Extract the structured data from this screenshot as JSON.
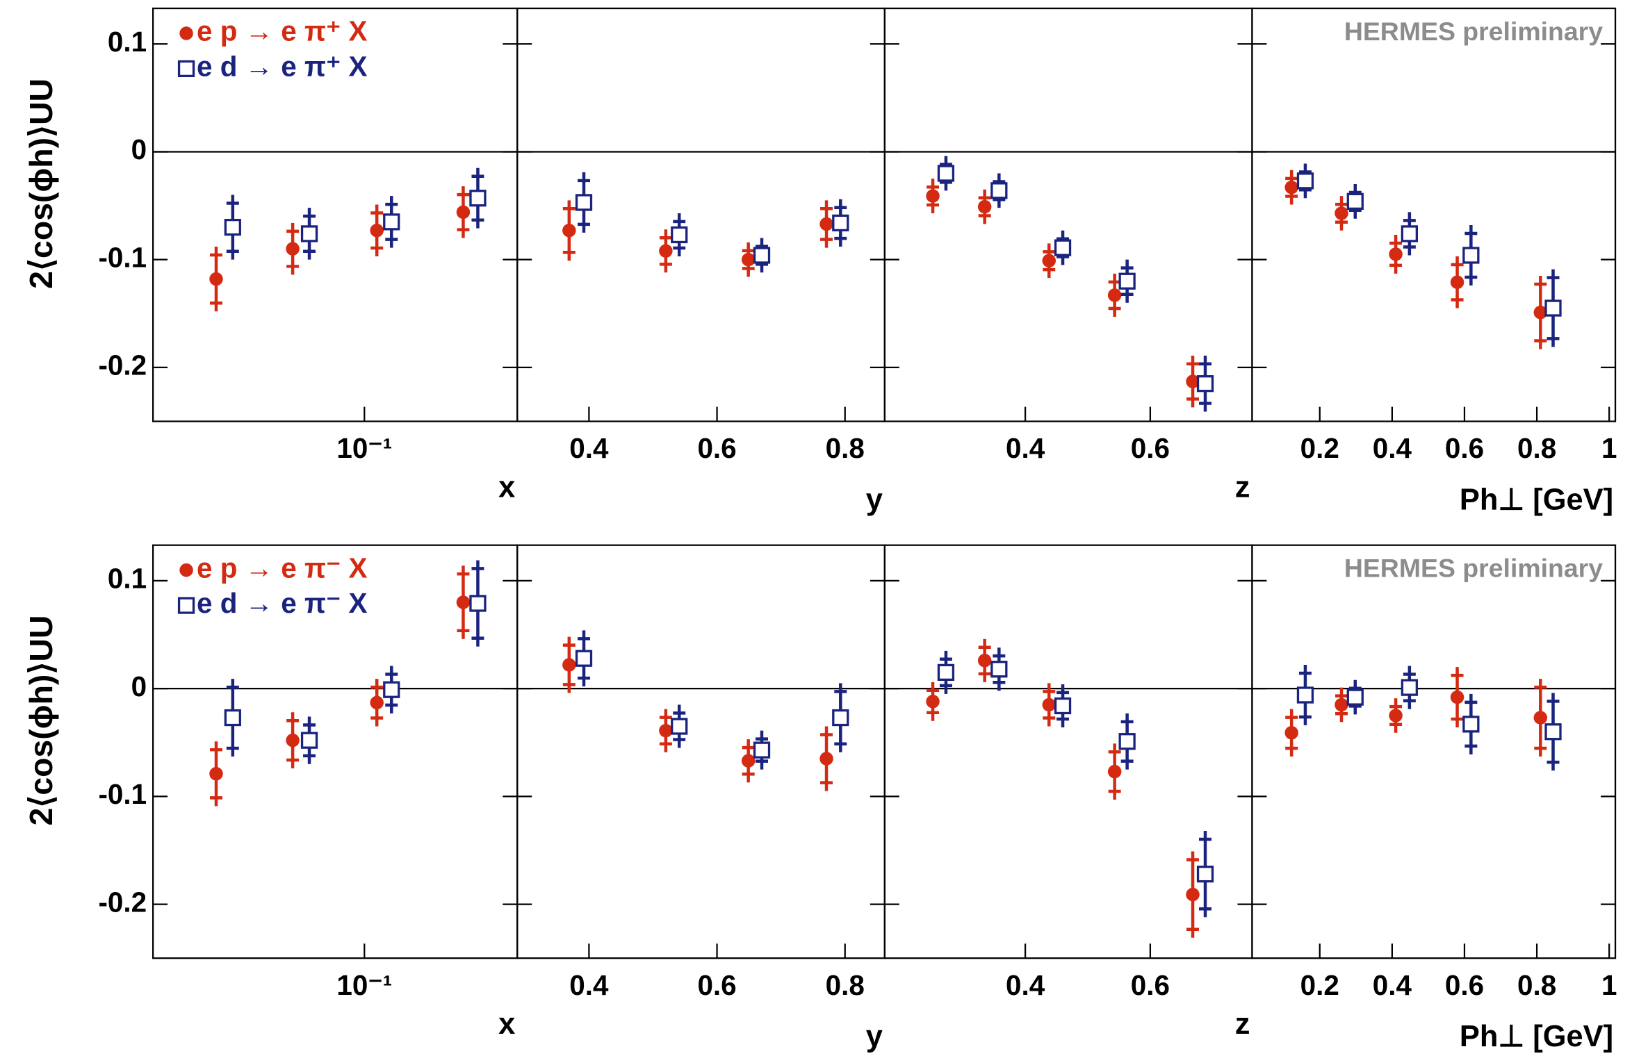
{
  "chart_data": [
    {
      "type": "scatter",
      "ylabel": "2⟨cos(ϕh)⟩UU",
      "xlabel": "x",
      "xscale": "log",
      "xlim": [
        0.0108,
        0.5
      ],
      "xticks": [
        {
          "value": 0.1,
          "label": "10⁻¹"
        }
      ],
      "ylim": [
        -0.25,
        0.133
      ],
      "yticks": [
        -0.2,
        -0.1,
        0,
        0.1
      ],
      "series": [
        {
          "name": "e p → e π⁺ X",
          "color": "#d42a12",
          "marker": "circle",
          "x": [
            0.021,
            0.047,
            0.114,
            0.283
          ],
          "values": [
            -0.118,
            -0.09,
            -0.073,
            -0.056
          ],
          "errors": [
            0.03,
            0.024,
            0.024,
            0.024
          ]
        },
        {
          "name": "e d → e π⁺ X",
          "color": "#1a237e",
          "marker": "square",
          "x": [
            0.025,
            0.056,
            0.133,
            0.33
          ],
          "values": [
            -0.07,
            -0.076,
            -0.065,
            -0.043
          ],
          "errors": [
            0.03,
            0.024,
            0.024,
            0.028
          ]
        }
      ]
    },
    {
      "type": "scatter",
      "xlabel": "y",
      "xlim": [
        0.288,
        0.862
      ],
      "xticks": [
        0.4,
        0.6,
        0.8
      ],
      "ylim": [
        -0.25,
        0.133
      ],
      "yticks": [
        -0.2,
        -0.1,
        0,
        0.1
      ],
      "series": [
        {
          "color": "#d42a12",
          "marker": "circle",
          "x": [
            0.369,
            0.52,
            0.649,
            0.771
          ],
          "values": [
            -0.073,
            -0.092,
            -0.1,
            -0.067
          ],
          "errors": [
            0.028,
            0.02,
            0.016,
            0.022
          ]
        },
        {
          "color": "#1a237e",
          "marker": "square",
          "x": [
            0.392,
            0.541,
            0.67,
            0.793
          ],
          "values": [
            -0.047,
            -0.077,
            -0.096,
            -0.066
          ],
          "errors": [
            0.028,
            0.02,
            0.016,
            0.022
          ]
        }
      ]
    },
    {
      "type": "scatter",
      "xlabel": "z",
      "xlim": [
        0.175,
        0.763
      ],
      "xticks": [
        0.4,
        0.6
      ],
      "ylim": [
        -0.25,
        0.133
      ],
      "yticks": [
        -0.2,
        -0.1,
        0,
        0.1
      ],
      "series": [
        {
          "color": "#d42a12",
          "marker": "circle",
          "x": [
            0.252,
            0.335,
            0.438,
            0.543,
            0.668
          ],
          "values": [
            -0.041,
            -0.051,
            -0.101,
            -0.133,
            -0.213
          ],
          "errors": [
            0.016,
            0.016,
            0.016,
            0.02,
            0.024
          ]
        },
        {
          "color": "#1a237e",
          "marker": "square",
          "x": [
            0.273,
            0.358,
            0.46,
            0.563,
            0.688
          ],
          "values": [
            -0.02,
            -0.036,
            -0.089,
            -0.12,
            -0.215
          ],
          "errors": [
            0.016,
            0.016,
            0.016,
            0.02,
            0.026
          ]
        }
      ]
    },
    {
      "type": "scatter",
      "xlabel": "Ph⊥  [GeV]",
      "annotation": "HERMES preliminary",
      "xlim": [
        0.013,
        1.017
      ],
      "xticks": [
        0.2,
        0.4,
        0.6,
        0.8,
        1
      ],
      "ylim": [
        -0.25,
        0.133
      ],
      "yticks": [
        -0.2,
        -0.1,
        0,
        0.1
      ],
      "series": [
        {
          "color": "#d42a12",
          "marker": "circle",
          "x": [
            0.122,
            0.26,
            0.41,
            0.58,
            0.81
          ],
          "values": [
            -0.033,
            -0.057,
            -0.095,
            -0.121,
            -0.149
          ],
          "errors": [
            0.016,
            0.016,
            0.018,
            0.024,
            0.034
          ]
        },
        {
          "color": "#1a237e",
          "marker": "square",
          "x": [
            0.16,
            0.298,
            0.448,
            0.618,
            0.845
          ],
          "values": [
            -0.027,
            -0.046,
            -0.076,
            -0.096,
            -0.145
          ],
          "errors": [
            0.016,
            0.016,
            0.02,
            0.028,
            0.036
          ]
        }
      ]
    },
    {
      "type": "scatter",
      "ylabel": "2⟨cos(ϕh)⟩UU",
      "xlabel": "x",
      "xscale": "log",
      "xlim": [
        0.0108,
        0.5
      ],
      "xticks": [
        {
          "value": 0.1,
          "label": "10⁻¹"
        }
      ],
      "ylim": [
        -0.25,
        0.133
      ],
      "yticks": [
        -0.2,
        -0.1,
        0,
        0.1
      ],
      "series": [
        {
          "name": "e p → e π⁻ X",
          "color": "#d42a12",
          "marker": "circle",
          "x": [
            0.021,
            0.047,
            0.114,
            0.283
          ],
          "values": [
            -0.079,
            -0.048,
            -0.013,
            0.08
          ],
          "errors": [
            0.03,
            0.026,
            0.022,
            0.034
          ]
        },
        {
          "name": "e d → e π⁻ X",
          "color": "#1a237e",
          "marker": "square",
          "x": [
            0.025,
            0.056,
            0.133,
            0.33
          ],
          "values": [
            -0.027,
            -0.048,
            -0.001,
            0.079
          ],
          "errors": [
            0.036,
            0.022,
            0.022,
            0.04
          ]
        }
      ]
    },
    {
      "type": "scatter",
      "xlabel": "y",
      "xlim": [
        0.288,
        0.862
      ],
      "xticks": [
        0.4,
        0.6,
        0.8
      ],
      "ylim": [
        -0.25,
        0.133
      ],
      "yticks": [
        -0.2,
        -0.1,
        0,
        0.1
      ],
      "series": [
        {
          "color": "#d42a12",
          "marker": "circle",
          "x": [
            0.369,
            0.52,
            0.649,
            0.771
          ],
          "values": [
            0.022,
            -0.039,
            -0.067,
            -0.065
          ],
          "errors": [
            0.026,
            0.02,
            0.02,
            0.03
          ]
        },
        {
          "color": "#1a237e",
          "marker": "square",
          "x": [
            0.392,
            0.541,
            0.67,
            0.793
          ],
          "values": [
            0.028,
            -0.035,
            -0.057,
            -0.027
          ],
          "errors": [
            0.026,
            0.02,
            0.018,
            0.032
          ]
        }
      ]
    },
    {
      "type": "scatter",
      "xlabel": "z",
      "xlim": [
        0.175,
        0.763
      ],
      "xticks": [
        0.4,
        0.6
      ],
      "ylim": [
        -0.25,
        0.133
      ],
      "yticks": [
        -0.2,
        -0.1,
        0,
        0.1
      ],
      "series": [
        {
          "color": "#d42a12",
          "marker": "circle",
          "x": [
            0.252,
            0.335,
            0.438,
            0.543,
            0.668
          ],
          "values": [
            -0.012,
            0.026,
            -0.015,
            -0.077,
            -0.191
          ],
          "errors": [
            0.018,
            0.02,
            0.02,
            0.026,
            0.04
          ]
        },
        {
          "color": "#1a237e",
          "marker": "square",
          "x": [
            0.273,
            0.358,
            0.46,
            0.563,
            0.688
          ],
          "values": [
            0.015,
            0.018,
            -0.016,
            -0.049,
            -0.172
          ],
          "errors": [
            0.02,
            0.02,
            0.02,
            0.026,
            0.04
          ]
        }
      ]
    },
    {
      "type": "scatter",
      "xlabel": "Ph⊥  [GeV]",
      "annotation": "HERMES preliminary",
      "xlim": [
        0.013,
        1.017
      ],
      "xticks": [
        0.2,
        0.4,
        0.6,
        0.8,
        1
      ],
      "ylim": [
        -0.25,
        0.133
      ],
      "yticks": [
        -0.2,
        -0.1,
        0,
        0.1
      ],
      "series": [
        {
          "color": "#d42a12",
          "marker": "circle",
          "x": [
            0.122,
            0.26,
            0.41,
            0.58,
            0.81
          ],
          "values": [
            -0.041,
            -0.015,
            -0.025,
            -0.008,
            -0.027
          ],
          "errors": [
            0.022,
            0.016,
            0.016,
            0.028,
            0.036
          ]
        },
        {
          "color": "#1a237e",
          "marker": "square",
          "x": [
            0.16,
            0.298,
            0.448,
            0.618,
            0.845
          ],
          "values": [
            -0.006,
            -0.008,
            0.001,
            -0.033,
            -0.04
          ],
          "errors": [
            0.028,
            0.016,
            0.02,
            0.028,
            0.036
          ]
        }
      ]
    }
  ]
}
